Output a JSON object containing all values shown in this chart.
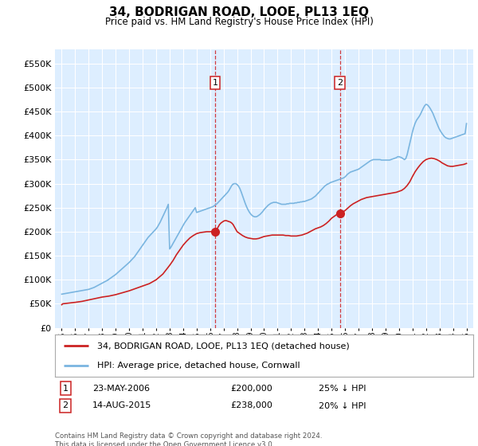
{
  "title": "34, BODRIGAN ROAD, LOOE, PL13 1EQ",
  "subtitle": "Price paid vs. HM Land Registry's House Price Index (HPI)",
  "legend_line1": "34, BODRIGAN ROAD, LOOE, PL13 1EQ (detached house)",
  "legend_line2": "HPI: Average price, detached house, Cornwall",
  "sale1_date": "23-MAY-2006",
  "sale1_price": "£200,000",
  "sale1_hpi": "25% ↓ HPI",
  "sale1_year": 2006.38,
  "sale1_value": 200000,
  "sale2_date": "14-AUG-2015",
  "sale2_price": "£238,000",
  "sale2_hpi": "20% ↓ HPI",
  "sale2_year": 2015.62,
  "sale2_value": 238000,
  "footnote": "Contains HM Land Registry data © Crown copyright and database right 2024.\nThis data is licensed under the Open Government Licence v3.0.",
  "hpi_color": "#7ab5e0",
  "price_color": "#cc2222",
  "background_color": "#ddeeff",
  "ylim": [
    0,
    580000
  ],
  "yticks": [
    0,
    50000,
    100000,
    150000,
    200000,
    250000,
    300000,
    350000,
    400000,
    450000,
    500000,
    550000
  ],
  "hpi_x": [
    1995.0,
    1995.1,
    1995.2,
    1995.3,
    1995.4,
    1995.5,
    1995.6,
    1995.7,
    1995.8,
    1995.9,
    1996.0,
    1996.1,
    1996.2,
    1996.3,
    1996.4,
    1996.5,
    1996.6,
    1996.7,
    1996.8,
    1996.9,
    1997.0,
    1997.1,
    1997.2,
    1997.3,
    1997.4,
    1997.5,
    1997.6,
    1997.7,
    1997.8,
    1997.9,
    1998.0,
    1998.1,
    1998.2,
    1998.3,
    1998.4,
    1998.5,
    1998.6,
    1998.7,
    1998.8,
    1998.9,
    1999.0,
    1999.1,
    1999.2,
    1999.3,
    1999.4,
    1999.5,
    1999.6,
    1999.7,
    1999.8,
    1999.9,
    2000.0,
    2000.1,
    2000.2,
    2000.3,
    2000.4,
    2000.5,
    2000.6,
    2000.7,
    2000.8,
    2000.9,
    2001.0,
    2001.1,
    2001.2,
    2001.3,
    2001.4,
    2001.5,
    2001.6,
    2001.7,
    2001.8,
    2001.9,
    2002.0,
    2002.1,
    2002.2,
    2002.3,
    2002.4,
    2002.5,
    2002.6,
    2002.7,
    2002.8,
    2002.9,
    2003.0,
    2003.1,
    2003.2,
    2003.3,
    2003.4,
    2003.5,
    2003.6,
    2003.7,
    2003.8,
    2003.9,
    2004.0,
    2004.1,
    2004.2,
    2004.3,
    2004.4,
    2004.5,
    2004.6,
    2004.7,
    2004.8,
    2004.9,
    2005.0,
    2005.1,
    2005.2,
    2005.3,
    2005.4,
    2005.5,
    2005.6,
    2005.7,
    2005.8,
    2005.9,
    2006.0,
    2006.1,
    2006.2,
    2006.3,
    2006.4,
    2006.5,
    2006.6,
    2006.7,
    2006.8,
    2006.9,
    2007.0,
    2007.1,
    2007.2,
    2007.3,
    2007.4,
    2007.5,
    2007.6,
    2007.7,
    2007.8,
    2007.9,
    2008.0,
    2008.1,
    2008.2,
    2008.3,
    2008.4,
    2008.5,
    2008.6,
    2008.7,
    2008.8,
    2008.9,
    2009.0,
    2009.1,
    2009.2,
    2009.3,
    2009.4,
    2009.5,
    2009.6,
    2009.7,
    2009.8,
    2009.9,
    2010.0,
    2010.1,
    2010.2,
    2010.3,
    2010.4,
    2010.5,
    2010.6,
    2010.7,
    2010.8,
    2010.9,
    2011.0,
    2011.1,
    2011.2,
    2011.3,
    2011.4,
    2011.5,
    2011.6,
    2011.7,
    2011.8,
    2011.9,
    2012.0,
    2012.1,
    2012.2,
    2012.3,
    2012.4,
    2012.5,
    2012.6,
    2012.7,
    2012.8,
    2012.9,
    2013.0,
    2013.1,
    2013.2,
    2013.3,
    2013.4,
    2013.5,
    2013.6,
    2013.7,
    2013.8,
    2013.9,
    2014.0,
    2014.1,
    2014.2,
    2014.3,
    2014.4,
    2014.5,
    2014.6,
    2014.7,
    2014.8,
    2014.9,
    2015.0,
    2015.1,
    2015.2,
    2015.3,
    2015.4,
    2015.5,
    2015.6,
    2015.7,
    2015.8,
    2015.9,
    2016.0,
    2016.1,
    2016.2,
    2016.3,
    2016.4,
    2016.5,
    2016.6,
    2016.7,
    2016.8,
    2016.9,
    2017.0,
    2017.1,
    2017.2,
    2017.3,
    2017.4,
    2017.5,
    2017.6,
    2017.7,
    2017.8,
    2017.9,
    2018.0,
    2018.1,
    2018.2,
    2018.3,
    2018.4,
    2018.5,
    2018.6,
    2018.7,
    2018.8,
    2018.9,
    2019.0,
    2019.1,
    2019.2,
    2019.3,
    2019.4,
    2019.5,
    2019.6,
    2019.7,
    2019.8,
    2019.9,
    2020.0,
    2020.1,
    2020.2,
    2020.3,
    2020.4,
    2020.5,
    2020.6,
    2020.7,
    2020.8,
    2020.9,
    2021.0,
    2021.1,
    2021.2,
    2021.3,
    2021.4,
    2021.5,
    2021.6,
    2021.7,
    2021.8,
    2021.9,
    2022.0,
    2022.1,
    2022.2,
    2022.3,
    2022.4,
    2022.5,
    2022.6,
    2022.7,
    2022.8,
    2022.9,
    2023.0,
    2023.1,
    2023.2,
    2023.3,
    2023.4,
    2023.5,
    2023.6,
    2023.7,
    2023.8,
    2023.9,
    2024.0,
    2024.1,
    2024.2,
    2024.3,
    2024.4,
    2024.5,
    2024.6,
    2024.7,
    2024.8,
    2024.9,
    2025.0
  ],
  "hpi_y": [
    70000,
    70500,
    71000,
    71500,
    72000,
    72500,
    73000,
    73500,
    74000,
    74500,
    75000,
    75500,
    76000,
    76500,
    77000,
    77500,
    78000,
    78500,
    79000,
    79500,
    80000,
    81000,
    82000,
    83000,
    84000,
    85500,
    87000,
    88500,
    90000,
    91500,
    93000,
    94500,
    96000,
    97500,
    99000,
    101000,
    103000,
    105000,
    107000,
    109000,
    111000,
    113500,
    116000,
    118500,
    121000,
    123500,
    126000,
    128500,
    131000,
    133500,
    136000,
    139000,
    142000,
    145000,
    148000,
    152000,
    156000,
    160000,
    164000,
    168000,
    172000,
    176000,
    180000,
    184000,
    188000,
    191000,
    194000,
    197000,
    200000,
    203000,
    206000,
    210000,
    215000,
    220000,
    226000,
    232000,
    238000,
    244000,
    250000,
    257000,
    164000,
    168000,
    173000,
    178000,
    183000,
    188000,
    193000,
    198000,
    203000,
    208000,
    213000,
    218000,
    222000,
    226000,
    230000,
    234000,
    238000,
    242000,
    246000,
    250000,
    240000,
    241000,
    242000,
    243000,
    244000,
    245000,
    246000,
    247000,
    248000,
    249000,
    250000,
    251000,
    252000,
    254000,
    256000,
    258000,
    261000,
    264000,
    267000,
    270000,
    273000,
    276000,
    279000,
    282000,
    286000,
    291000,
    296000,
    299000,
    300000,
    300000,
    298000,
    295000,
    290000,
    283000,
    275000,
    267000,
    259000,
    252000,
    246000,
    241000,
    237000,
    234000,
    232000,
    231000,
    231000,
    232000,
    234000,
    236000,
    239000,
    242000,
    246000,
    249000,
    252000,
    255000,
    257000,
    259000,
    260000,
    261000,
    261000,
    261000,
    260000,
    259000,
    258000,
    257000,
    257000,
    257000,
    257000,
    258000,
    258000,
    259000,
    259000,
    259000,
    259000,
    260000,
    260000,
    261000,
    261000,
    262000,
    262000,
    263000,
    263000,
    264000,
    265000,
    266000,
    267000,
    268000,
    270000,
    272000,
    274000,
    277000,
    280000,
    283000,
    286000,
    289000,
    292000,
    295000,
    297000,
    299000,
    300000,
    302000,
    303000,
    304000,
    305000,
    306000,
    307000,
    308000,
    309000,
    310000,
    311000,
    312000,
    314000,
    317000,
    320000,
    322000,
    324000,
    325000,
    326000,
    327000,
    328000,
    329000,
    330000,
    332000,
    334000,
    336000,
    338000,
    340000,
    342000,
    344000,
    346000,
    348000,
    349000,
    350000,
    350000,
    350000,
    350000,
    350000,
    350000,
    349000,
    349000,
    349000,
    349000,
    349000,
    349000,
    349000,
    350000,
    351000,
    352000,
    353000,
    354000,
    356000,
    356000,
    355000,
    354000,
    352000,
    350000,
    352000,
    360000,
    372000,
    384000,
    396000,
    408000,
    418000,
    426000,
    432000,
    436000,
    440000,
    445000,
    451000,
    457000,
    462000,
    465000,
    464000,
    461000,
    457000,
    452000,
    447000,
    440000,
    433000,
    426000,
    419000,
    413000,
    408000,
    404000,
    400000,
    397000,
    395000,
    394000,
    393000,
    393000,
    394000,
    395000,
    396000,
    397000,
    398000,
    399000,
    400000,
    401000,
    402000,
    403000,
    404000,
    425000
  ],
  "price_x": [
    1995.0,
    1995.08,
    1996.0,
    1996.5,
    1997.0,
    1997.5,
    1998.0,
    1998.5,
    1999.0,
    1999.5,
    2000.0,
    2000.5,
    2001.0,
    2001.5,
    2002.0,
    2002.5,
    2003.0,
    2003.25,
    2003.5,
    2003.75,
    2004.0,
    2004.25,
    2004.5,
    2004.75,
    2005.0,
    2005.25,
    2005.5,
    2005.75,
    2006.0,
    2006.1,
    2006.2,
    2006.3,
    2006.38,
    2006.5,
    2006.6,
    2006.7,
    2006.8,
    2006.9,
    2007.0,
    2007.1,
    2007.2,
    2007.3,
    2007.4,
    2007.5,
    2007.6,
    2007.7,
    2007.8,
    2007.9,
    2008.0,
    2008.2,
    2008.4,
    2008.6,
    2008.8,
    2009.0,
    2009.2,
    2009.4,
    2009.6,
    2009.8,
    2010.0,
    2010.2,
    2010.4,
    2010.6,
    2010.8,
    2011.0,
    2011.2,
    2011.4,
    2011.6,
    2011.8,
    2012.0,
    2012.2,
    2012.4,
    2012.6,
    2012.8,
    2013.0,
    2013.2,
    2013.4,
    2013.6,
    2013.8,
    2014.0,
    2014.2,
    2014.4,
    2014.6,
    2014.8,
    2015.0,
    2015.2,
    2015.4,
    2015.62,
    2015.8,
    2016.0,
    2016.2,
    2016.4,
    2016.6,
    2016.8,
    2017.0,
    2017.2,
    2017.4,
    2017.6,
    2017.8,
    2018.0,
    2018.2,
    2018.4,
    2018.6,
    2018.8,
    2019.0,
    2019.2,
    2019.4,
    2019.6,
    2019.8,
    2020.0,
    2020.2,
    2020.4,
    2020.6,
    2020.8,
    2021.0,
    2021.2,
    2021.4,
    2021.6,
    2021.8,
    2022.0,
    2022.2,
    2022.4,
    2022.6,
    2022.8,
    2023.0,
    2023.2,
    2023.4,
    2023.6,
    2023.8,
    2024.0,
    2024.2,
    2024.4,
    2024.6,
    2024.8,
    2025.0
  ],
  "price_y": [
    48000,
    50000,
    53000,
    55000,
    58000,
    61000,
    64000,
    66000,
    69000,
    73000,
    77000,
    82000,
    87000,
    92000,
    100000,
    112000,
    130000,
    140000,
    152000,
    162000,
    172000,
    180000,
    187000,
    192000,
    196000,
    198000,
    199000,
    200000,
    200000,
    200500,
    200800,
    200500,
    200000,
    205000,
    210000,
    215000,
    218000,
    220000,
    222000,
    223000,
    223000,
    222000,
    221000,
    220000,
    218000,
    215000,
    210000,
    205000,
    200000,
    196000,
    192000,
    189000,
    187000,
    186000,
    185000,
    185000,
    186000,
    188000,
    190000,
    191000,
    192000,
    193000,
    193000,
    193000,
    193000,
    193000,
    192000,
    192000,
    191000,
    191000,
    191000,
    192000,
    193000,
    195000,
    197000,
    200000,
    203000,
    206000,
    208000,
    210000,
    213000,
    217000,
    222000,
    228000,
    232000,
    236000,
    238000,
    240000,
    244000,
    249000,
    254000,
    258000,
    261000,
    264000,
    267000,
    269000,
    271000,
    272000,
    273000,
    274000,
    275000,
    276000,
    277000,
    278000,
    279000,
    280000,
    281000,
    282000,
    284000,
    286000,
    290000,
    296000,
    304000,
    315000,
    325000,
    333000,
    340000,
    346000,
    350000,
    352000,
    353000,
    352000,
    350000,
    347000,
    343000,
    340000,
    337000,
    336000,
    336000,
    337000,
    338000,
    339000,
    340000,
    342000
  ]
}
